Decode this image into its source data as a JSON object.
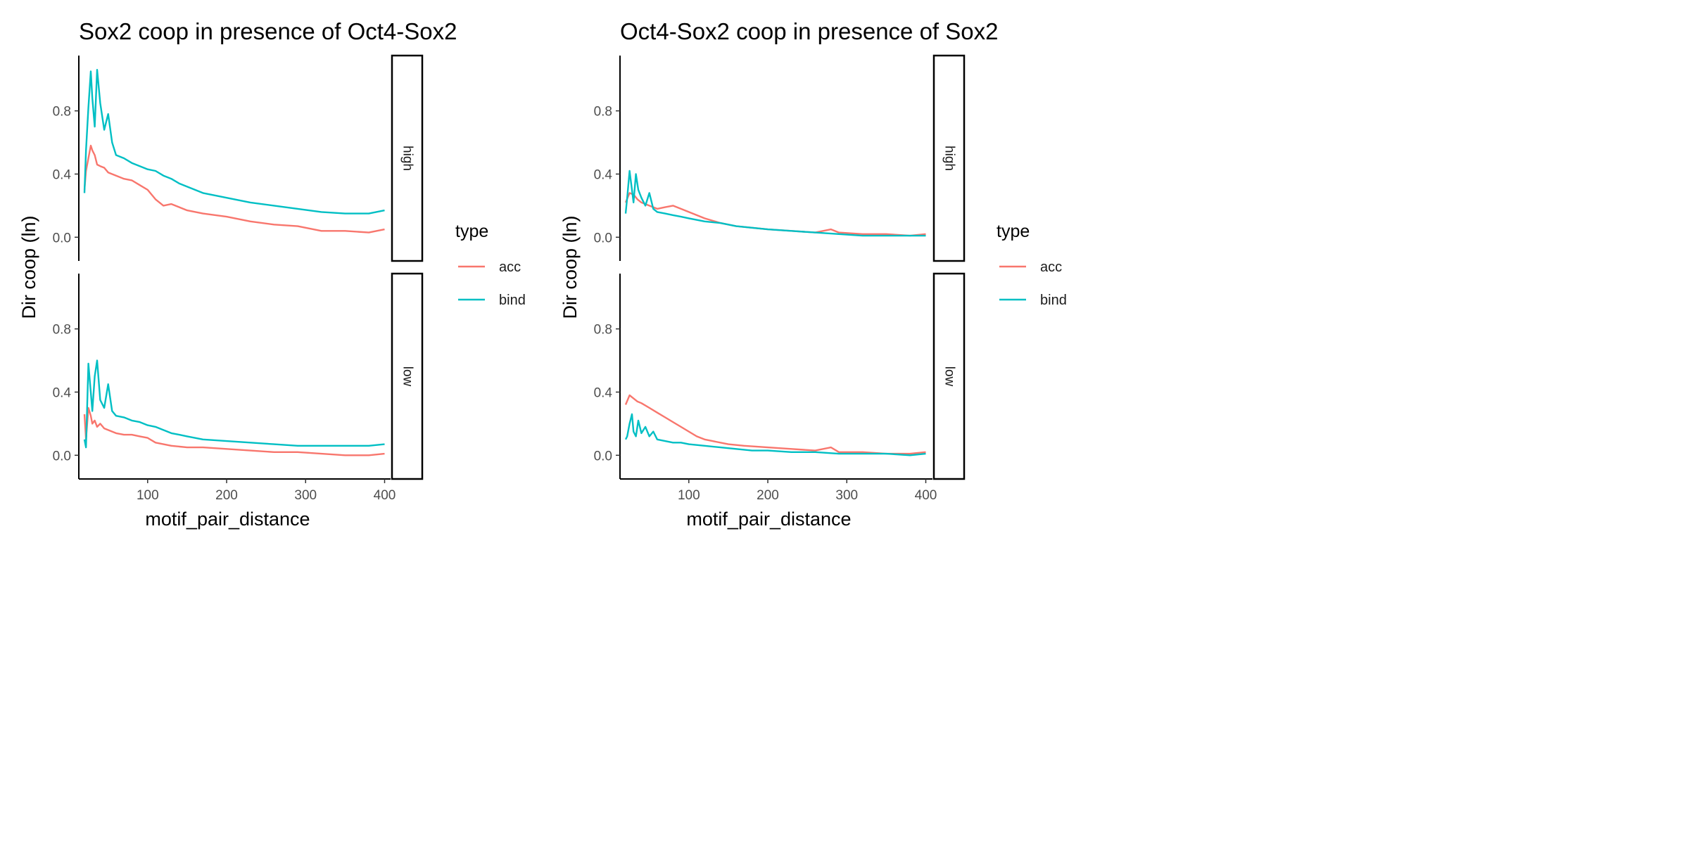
{
  "chart_data": [
    {
      "type": "line",
      "title": "Sox2 coop in presence of Oct4-Sox2",
      "xlabel": "motif_pair_distance",
      "ylabel": "Dir coop (ln)",
      "xlim": [
        20,
        400
      ],
      "ylim": [
        -0.15,
        1.15
      ],
      "xticks": [
        100,
        200,
        300,
        400
      ],
      "yticks": [
        0.0,
        0.4,
        0.8
      ],
      "facets": [
        "high",
        "low"
      ],
      "legend": {
        "title": "type",
        "entries": [
          "acc",
          "bind"
        ],
        "position": "right"
      },
      "colors": {
        "acc": "#F8766D",
        "bind": "#00BFC4"
      },
      "panels": [
        {
          "facet": "high",
          "series": [
            {
              "name": "acc",
              "x": [
                20,
                22,
                25,
                28,
                30,
                33,
                36,
                40,
                45,
                50,
                60,
                70,
                80,
                90,
                100,
                110,
                120,
                130,
                150,
                170,
                200,
                230,
                260,
                290,
                320,
                350,
                380,
                400
              ],
              "values": [
                0.3,
                0.42,
                0.5,
                0.58,
                0.55,
                0.52,
                0.46,
                0.45,
                0.44,
                0.41,
                0.39,
                0.37,
                0.36,
                0.33,
                0.3,
                0.24,
                0.2,
                0.21,
                0.17,
                0.15,
                0.13,
                0.1,
                0.08,
                0.07,
                0.04,
                0.04,
                0.03,
                0.05
              ]
            },
            {
              "name": "bind",
              "x": [
                20,
                22,
                25,
                28,
                30,
                33,
                36,
                40,
                45,
                50,
                55,
                60,
                70,
                80,
                90,
                100,
                110,
                120,
                130,
                140,
                150,
                170,
                200,
                230,
                260,
                290,
                320,
                350,
                380,
                400
              ],
              "values": [
                0.28,
                0.55,
                0.82,
                1.05,
                0.88,
                0.7,
                1.06,
                0.85,
                0.68,
                0.78,
                0.6,
                0.52,
                0.5,
                0.47,
                0.45,
                0.43,
                0.42,
                0.39,
                0.37,
                0.34,
                0.32,
                0.28,
                0.25,
                0.22,
                0.2,
                0.18,
                0.16,
                0.15,
                0.15,
                0.17
              ]
            }
          ]
        },
        {
          "facet": "low",
          "series": [
            {
              "name": "acc",
              "x": [
                20,
                22,
                25,
                28,
                30,
                33,
                36,
                40,
                45,
                50,
                60,
                70,
                80,
                90,
                100,
                110,
                120,
                130,
                150,
                170,
                200,
                230,
                260,
                290,
                320,
                350,
                380,
                400
              ],
              "values": [
                0.26,
                0.1,
                0.3,
                0.25,
                0.2,
                0.22,
                0.18,
                0.2,
                0.17,
                0.16,
                0.14,
                0.13,
                0.13,
                0.12,
                0.11,
                0.08,
                0.07,
                0.06,
                0.05,
                0.05,
                0.04,
                0.03,
                0.02,
                0.02,
                0.01,
                0.0,
                0.0,
                0.01
              ]
            },
            {
              "name": "bind",
              "x": [
                20,
                22,
                25,
                28,
                30,
                33,
                36,
                40,
                45,
                50,
                55,
                60,
                70,
                80,
                90,
                100,
                110,
                120,
                130,
                140,
                150,
                170,
                200,
                230,
                260,
                290,
                320,
                350,
                380,
                400
              ],
              "values": [
                0.1,
                0.05,
                0.58,
                0.4,
                0.28,
                0.5,
                0.6,
                0.35,
                0.3,
                0.45,
                0.28,
                0.25,
                0.24,
                0.22,
                0.21,
                0.19,
                0.18,
                0.16,
                0.14,
                0.13,
                0.12,
                0.1,
                0.09,
                0.08,
                0.07,
                0.06,
                0.06,
                0.06,
                0.06,
                0.07
              ]
            }
          ]
        }
      ]
    },
    {
      "type": "line",
      "title": "Oct4-Sox2 coop in presence of Sox2",
      "xlabel": "motif_pair_distance",
      "ylabel": "Dir coop (ln)",
      "xlim": [
        20,
        400
      ],
      "ylim": [
        -0.15,
        1.15
      ],
      "xticks": [
        100,
        200,
        300,
        400
      ],
      "yticks": [
        0.0,
        0.4,
        0.8
      ],
      "facets": [
        "high",
        "low"
      ],
      "legend": {
        "title": "type",
        "entries": [
          "acc",
          "bind"
        ],
        "position": "right"
      },
      "colors": {
        "acc": "#F8766D",
        "bind": "#00BFC4"
      },
      "panels": [
        {
          "facet": "high",
          "series": [
            {
              "name": "acc",
              "x": [
                20,
                25,
                30,
                35,
                40,
                50,
                60,
                70,
                80,
                90,
                100,
                120,
                140,
                160,
                180,
                200,
                230,
                260,
                280,
                290,
                320,
                350,
                380,
                400
              ],
              "values": [
                0.22,
                0.28,
                0.27,
                0.24,
                0.22,
                0.2,
                0.18,
                0.19,
                0.2,
                0.18,
                0.16,
                0.12,
                0.09,
                0.07,
                0.06,
                0.05,
                0.04,
                0.03,
                0.05,
                0.03,
                0.02,
                0.02,
                0.01,
                0.02
              ]
            },
            {
              "name": "bind",
              "x": [
                20,
                22,
                25,
                28,
                30,
                33,
                36,
                40,
                45,
                50,
                55,
                60,
                70,
                80,
                90,
                100,
                120,
                140,
                160,
                180,
                200,
                230,
                260,
                290,
                320,
                350,
                380,
                400
              ],
              "values": [
                0.15,
                0.25,
                0.42,
                0.3,
                0.22,
                0.4,
                0.3,
                0.25,
                0.2,
                0.28,
                0.18,
                0.16,
                0.15,
                0.14,
                0.13,
                0.12,
                0.1,
                0.09,
                0.07,
                0.06,
                0.05,
                0.04,
                0.03,
                0.02,
                0.01,
                0.01,
                0.01,
                0.01
              ]
            }
          ]
        },
        {
          "facet": "low",
          "series": [
            {
              "name": "acc",
              "x": [
                20,
                25,
                30,
                35,
                40,
                50,
                60,
                70,
                80,
                90,
                100,
                110,
                120,
                130,
                150,
                170,
                200,
                230,
                260,
                280,
                290,
                320,
                350,
                380,
                400
              ],
              "values": [
                0.32,
                0.38,
                0.36,
                0.34,
                0.33,
                0.3,
                0.27,
                0.24,
                0.21,
                0.18,
                0.15,
                0.12,
                0.1,
                0.09,
                0.07,
                0.06,
                0.05,
                0.04,
                0.03,
                0.05,
                0.02,
                0.02,
                0.01,
                0.01,
                0.02
              ]
            },
            {
              "name": "bind",
              "x": [
                20,
                22,
                25,
                28,
                30,
                33,
                36,
                40,
                45,
                50,
                55,
                60,
                70,
                80,
                90,
                100,
                120,
                140,
                160,
                180,
                200,
                230,
                260,
                290,
                320,
                350,
                380,
                400
              ],
              "values": [
                0.1,
                0.12,
                0.2,
                0.26,
                0.15,
                0.12,
                0.22,
                0.14,
                0.18,
                0.12,
                0.15,
                0.1,
                0.09,
                0.08,
                0.08,
                0.07,
                0.06,
                0.05,
                0.04,
                0.03,
                0.03,
                0.02,
                0.02,
                0.01,
                0.01,
                0.01,
                0.0,
                0.01
              ]
            }
          ]
        }
      ]
    }
  ]
}
